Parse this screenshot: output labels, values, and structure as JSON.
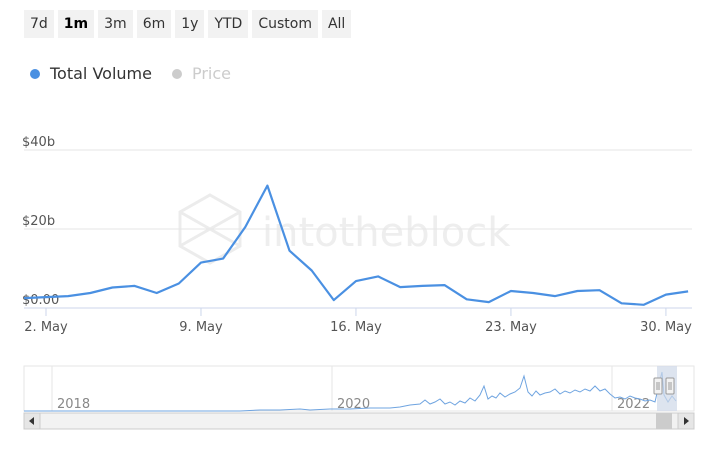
{
  "range_buttons": [
    {
      "label": "7d",
      "active": false
    },
    {
      "label": "1m",
      "active": true
    },
    {
      "label": "3m",
      "active": false
    },
    {
      "label": "6m",
      "active": false
    },
    {
      "label": "1y",
      "active": false
    },
    {
      "label": "YTD",
      "active": false
    },
    {
      "label": "Custom",
      "active": false
    },
    {
      "label": "All",
      "active": false
    }
  ],
  "legend": [
    {
      "label": "Total Volume",
      "color": "#4a90e2",
      "visible": true
    },
    {
      "label": "Price",
      "color": "#cccccc",
      "visible": false
    }
  ],
  "watermark": "intotheblock",
  "colors": {
    "line": "#4a90e2",
    "grid": "#e6e6e6",
    "axis": "#ccd6eb"
  },
  "navigator": {
    "year_labels": [
      "2018",
      "2020",
      "2022"
    ]
  },
  "chart_data": {
    "type": "line",
    "title": "",
    "xlabel": "",
    "ylabel": "",
    "x_ticks": [
      "2. May",
      "9. May",
      "16. May",
      "23. May",
      "30. May"
    ],
    "y_ticks": [
      "$0.00",
      "$20b",
      "$40b"
    ],
    "ylim": [
      0,
      40
    ],
    "xlim": [
      1,
      31
    ],
    "grid": true,
    "legend_position": "top-left",
    "series": [
      {
        "name": "Total Volume",
        "x": [
          1,
          3,
          4,
          5,
          6,
          7,
          8,
          9,
          10,
          11,
          12,
          13,
          14,
          15,
          16,
          17,
          18,
          19,
          20,
          21,
          22,
          23,
          24,
          25,
          26,
          27,
          28,
          29,
          30,
          31
        ],
        "values": [
          2.5,
          3.0,
          3.8,
          5.2,
          5.6,
          3.8,
          6.2,
          11.5,
          12.5,
          20.5,
          31.0,
          14.5,
          9.5,
          2.0,
          6.8,
          8.0,
          5.3,
          5.6,
          5.8,
          2.2,
          1.5,
          4.3,
          3.8,
          3.0,
          4.3,
          4.5,
          1.2,
          0.8,
          3.4,
          4.2
        ]
      }
    ]
  }
}
